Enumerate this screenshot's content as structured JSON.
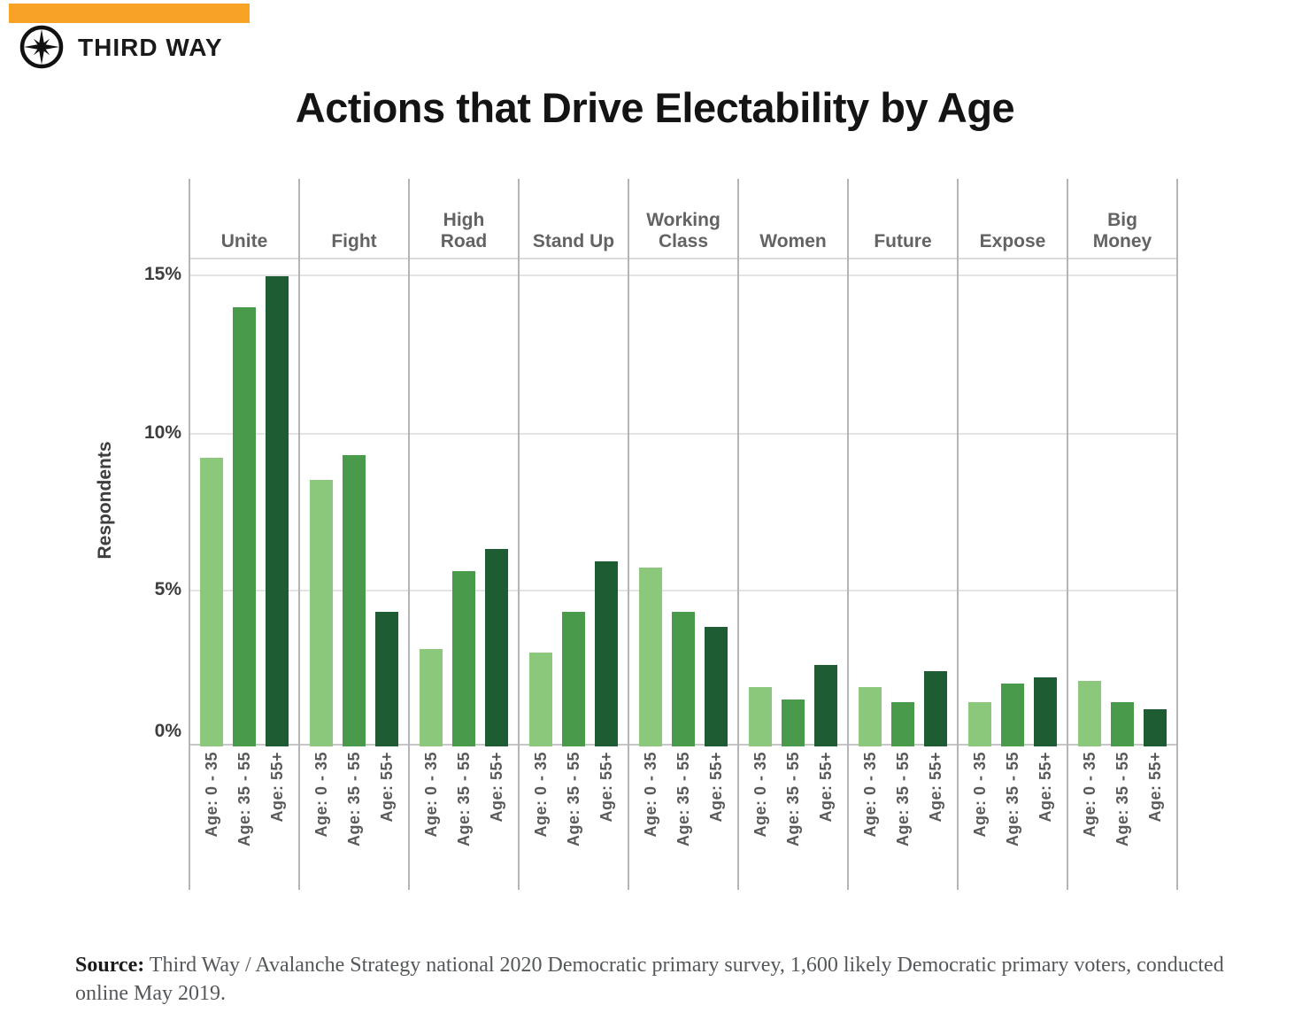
{
  "brand": {
    "name": "THIRD WAY"
  },
  "title": "Actions that Drive Electability by Age",
  "chart_data": {
    "type": "bar",
    "title": "Actions that Drive Electability by Age",
    "ylabel": "Respondents",
    "y_ticks": [
      "15%",
      "10%",
      "5%",
      "0%"
    ],
    "ylim": [
      0,
      15.7
    ],
    "grid": "horizontal",
    "legend_position": "none",
    "categories": [
      "Unite",
      "Fight",
      "High Road",
      "Stand Up",
      "Working Class",
      "Women",
      "Future",
      "Expose",
      "Big Money"
    ],
    "category_display": [
      "Unite",
      "Fight",
      "High\nRoad",
      "Stand Up",
      "Working\nClass",
      "Women",
      "Future",
      "Expose",
      "Big\nMoney"
    ],
    "age_groups": [
      "Age: 0 - 35",
      "Age: 35 - 55",
      "Age: 55+"
    ],
    "series": [
      {
        "name": "Age: 0 - 35",
        "values": [
          9.2,
          8.5,
          3.1,
          3.0,
          5.7,
          1.9,
          1.9,
          1.4,
          2.1
        ]
      },
      {
        "name": "Age: 35 - 55",
        "values": [
          14.0,
          9.3,
          5.6,
          4.3,
          4.3,
          1.5,
          1.4,
          2.0,
          1.4
        ]
      },
      {
        "name": "Age: 55+",
        "values": [
          15.0,
          4.3,
          6.3,
          5.9,
          3.8,
          2.6,
          2.4,
          2.2,
          1.2
        ]
      }
    ]
  },
  "source": {
    "label": "Source:",
    "text": " Third Way / Avalanche Strategy national 2020 Democratic primary survey, 1,600 likely Democratic primary voters, conducted online May 2019."
  },
  "colors": {
    "accent_orange": "#F9A326",
    "bar_age_0_35": "#8CC87C",
    "bar_age_35_55": "#4A9A4B",
    "bar_age_55_plus": "#1E5C33"
  }
}
